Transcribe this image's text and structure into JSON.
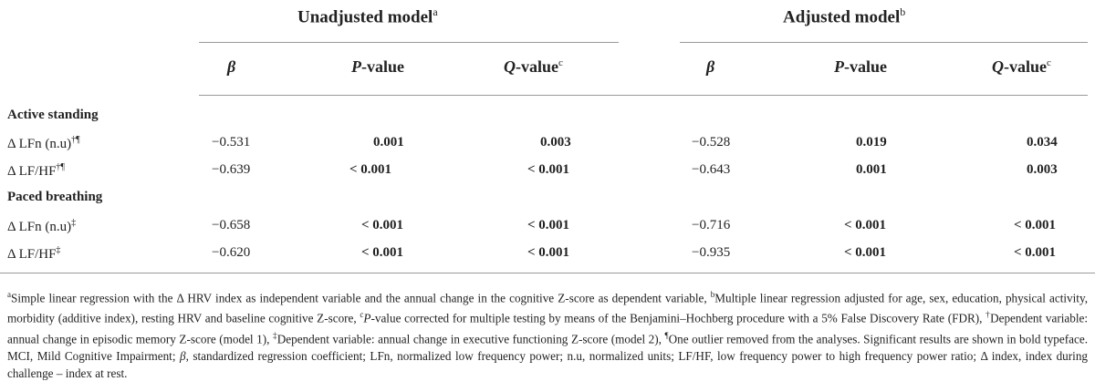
{
  "groups": {
    "unadjusted": {
      "label": "Unadjusted model",
      "sup": "a"
    },
    "adjusted": {
      "label": "Adjusted model",
      "sup": "b"
    }
  },
  "columns": {
    "beta": "β",
    "p_value_italic": "P",
    "p_value_rest": "-value",
    "q_value_italic": "Q",
    "q_value_rest": "-value",
    "q_sup": "c"
  },
  "sections": [
    {
      "title": "Active standing",
      "rows": [
        {
          "label": "Δ LFn (n.u)",
          "sup": "†¶",
          "u_beta": "−0.531",
          "u_p": "0.001",
          "u_q": "0.003",
          "a_beta": "−0.528",
          "a_p": "0.019",
          "a_q": "0.034"
        },
        {
          "label": "Δ LF/HF",
          "sup": "†¶",
          "u_beta": "−0.639",
          "u_p": "< 0.001",
          "u_q": "< 0.001",
          "a_beta": "−0.643",
          "a_p": "0.001",
          "a_q": "0.003"
        }
      ]
    },
    {
      "title": "Paced breathing",
      "rows": [
        {
          "label": "Δ LFn (n.u)",
          "sup": "‡",
          "u_beta": "−0.658",
          "u_p": "< 0.001",
          "u_q": "< 0.001",
          "a_beta": "−0.716",
          "a_p": "< 0.001",
          "a_q": "< 0.001"
        },
        {
          "label": "Δ LF/HF",
          "sup": "‡",
          "u_beta": "−0.620",
          "u_p": "< 0.001",
          "u_q": "< 0.001",
          "a_beta": "−0.935",
          "a_p": "< 0.001",
          "a_q": "< 0.001"
        }
      ]
    }
  ],
  "footnote": {
    "a_sup": "a",
    "a_text": "Simple linear regression with the Δ HRV index as independent variable and the annual change in the cognitive Z-score as dependent variable, ",
    "b_sup": "b",
    "b_text": "Multiple linear regression adjusted for age, sex, education, physical activity, morbidity (additive index), resting HRV and baseline cognitive Z-score, ",
    "c_sup": "c",
    "c_italic": "P",
    "c_text": "-value corrected for multiple testing by means of the Benjamini–Hochberg procedure with a 5% False Discovery Rate (FDR), ",
    "dagger_sup": "†",
    "dagger_text": "Dependent variable: annual change in episodic memory Z-score (model 1), ",
    "ddagger_sup": "‡",
    "ddagger_text": "Dependent variable: annual change in executive functioning Z-score (model 2), ",
    "pilcrow_sup": "¶",
    "pilcrow_text": "One outlier removed from the analyses. Significant results are shown in bold typeface. MCI, Mild Cognitive Impairment; ",
    "beta_italic": "β",
    "tail_text": ", standardized regression coefficient; LFn, normalized low frequency power; n.u, normalized units; LF/HF, low frequency power to high frequency power ratio; Δ index, index during challenge – index at rest."
  }
}
